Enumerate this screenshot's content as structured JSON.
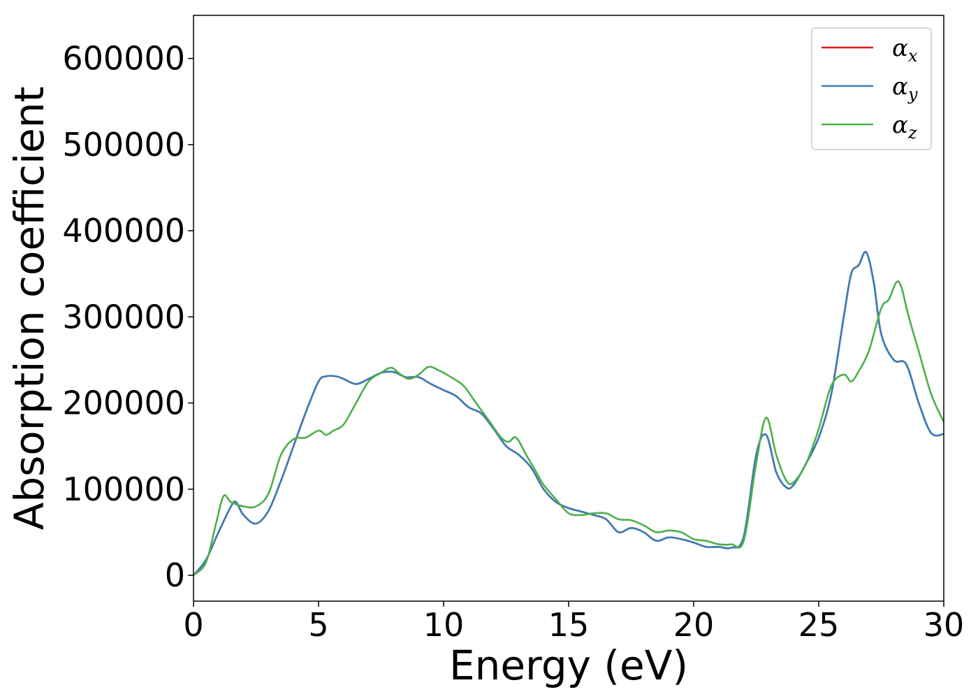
{
  "chart_data": {
    "type": "line",
    "xlabel": "Energy (eV)",
    "ylabel": "Absorption coefficient",
    "xlim": [
      0,
      30
    ],
    "ylim": [
      -30000,
      650000
    ],
    "xticks": [
      0,
      5,
      10,
      15,
      20,
      25,
      30
    ],
    "xtick_labels": [
      "0",
      "5",
      "10",
      "15",
      "20",
      "25",
      "30"
    ],
    "yticks": [
      0,
      100000,
      200000,
      300000,
      400000,
      500000,
      600000
    ],
    "ytick_labels": [
      "0",
      "100000",
      "200000",
      "300000",
      "400000",
      "500000",
      "600000"
    ],
    "grid": false,
    "legend_position": "top-right",
    "series": [
      {
        "name": "αx",
        "symbol": "α",
        "sub": "x",
        "color": "#e41a1c",
        "x": [
          0,
          0.5,
          1,
          1.5,
          1.7,
          2,
          2.5,
          3,
          3.5,
          4,
          4.5,
          5,
          5.3,
          5.7,
          6,
          6.5,
          7,
          7.5,
          8,
          8.5,
          9,
          9.5,
          10,
          10.5,
          11,
          11.5,
          12,
          12.5,
          13,
          13.5,
          14,
          14.5,
          15,
          15.5,
          16,
          16.5,
          17,
          17.5,
          18,
          18.5,
          19,
          19.5,
          20,
          20.5,
          21,
          21.5,
          22,
          22.5,
          22.9,
          23.3,
          23.7,
          24,
          24.5,
          25,
          25.5,
          26,
          26.3,
          26.6,
          26.9,
          27.2,
          27.5,
          28,
          28.5,
          29,
          29.5,
          30
        ],
        "y": [
          0,
          18000,
          50000,
          80000,
          85000,
          70000,
          60000,
          75000,
          110000,
          150000,
          190000,
          225000,
          231000,
          231000,
          228000,
          222000,
          228000,
          235000,
          236000,
          230000,
          230000,
          222000,
          215000,
          208000,
          195000,
          188000,
          170000,
          150000,
          140000,
          125000,
          100000,
          85000,
          78000,
          74000,
          70000,
          65000,
          50000,
          55000,
          50000,
          40000,
          44000,
          42000,
          38000,
          33000,
          33000,
          32000,
          45000,
          140000,
          163000,
          120000,
          102000,
          105000,
          130000,
          160000,
          210000,
          300000,
          350000,
          360000,
          375000,
          340000,
          280000,
          250000,
          245000,
          200000,
          165000,
          164000
        ]
      },
      {
        "name": "αy",
        "symbol": "α",
        "sub": "y",
        "color": "#377eb8",
        "x": [
          0,
          0.5,
          1,
          1.5,
          1.7,
          2,
          2.5,
          3,
          3.5,
          4,
          4.5,
          5,
          5.3,
          5.7,
          6,
          6.5,
          7,
          7.5,
          8,
          8.5,
          9,
          9.5,
          10,
          10.5,
          11,
          11.5,
          12,
          12.5,
          13,
          13.5,
          14,
          14.5,
          15,
          15.5,
          16,
          16.5,
          17,
          17.5,
          18,
          18.5,
          19,
          19.5,
          20,
          20.5,
          21,
          21.5,
          22,
          22.5,
          22.9,
          23.3,
          23.7,
          24,
          24.5,
          25,
          25.5,
          26,
          26.3,
          26.6,
          26.9,
          27.2,
          27.5,
          28,
          28.5,
          29,
          29.5,
          30
        ],
        "y": [
          0,
          18000,
          50000,
          80000,
          85000,
          70000,
          60000,
          75000,
          110000,
          150000,
          190000,
          225000,
          231000,
          231000,
          228000,
          222000,
          228000,
          235000,
          236000,
          230000,
          230000,
          222000,
          215000,
          208000,
          195000,
          188000,
          170000,
          150000,
          140000,
          125000,
          100000,
          85000,
          78000,
          74000,
          70000,
          65000,
          50000,
          55000,
          50000,
          40000,
          44000,
          42000,
          38000,
          33000,
          33000,
          32000,
          45000,
          140000,
          163000,
          120000,
          102000,
          105000,
          130000,
          160000,
          210000,
          300000,
          350000,
          360000,
          375000,
          340000,
          280000,
          250000,
          245000,
          200000,
          165000,
          164000
        ]
      },
      {
        "name": "αz",
        "symbol": "α",
        "sub": "z",
        "color": "#4daf4a",
        "x": [
          0,
          0.5,
          0.9,
          1.2,
          1.5,
          2,
          2.5,
          3,
          3.5,
          4,
          4.5,
          5,
          5.3,
          5.6,
          6,
          6.5,
          7,
          7.5,
          7.9,
          8.2,
          8.6,
          9,
          9.4,
          9.8,
          10.3,
          10.8,
          11.3,
          11.8,
          12.3,
          12.6,
          12.9,
          13.3,
          13.7,
          14,
          14.5,
          15,
          15.5,
          16,
          16.5,
          17,
          17.5,
          18,
          18.5,
          19,
          19.5,
          20,
          20.5,
          21,
          21.5,
          22,
          22.5,
          22.9,
          23.3,
          23.7,
          24,
          24.5,
          25,
          25.5,
          26,
          26.3,
          26.6,
          27,
          27.5,
          27.8,
          28.1,
          28.3,
          28.6,
          29,
          29.5,
          30
        ],
        "y": [
          0,
          15000,
          60000,
          92000,
          85000,
          80000,
          80000,
          95000,
          140000,
          158000,
          160000,
          168000,
          163000,
          168000,
          175000,
          200000,
          225000,
          235000,
          241000,
          235000,
          228000,
          233000,
          242000,
          238000,
          230000,
          220000,
          200000,
          180000,
          160000,
          155000,
          160000,
          140000,
          120000,
          105000,
          88000,
          72000,
          70000,
          72000,
          72000,
          65000,
          64000,
          58000,
          50000,
          52000,
          50000,
          42000,
          40000,
          36000,
          36000,
          40000,
          130000,
          183000,
          140000,
          110000,
          108000,
          130000,
          170000,
          220000,
          233000,
          225000,
          237000,
          260000,
          310000,
          320000,
          340000,
          335000,
          300000,
          260000,
          210000,
          178000
        ]
      }
    ]
  }
}
